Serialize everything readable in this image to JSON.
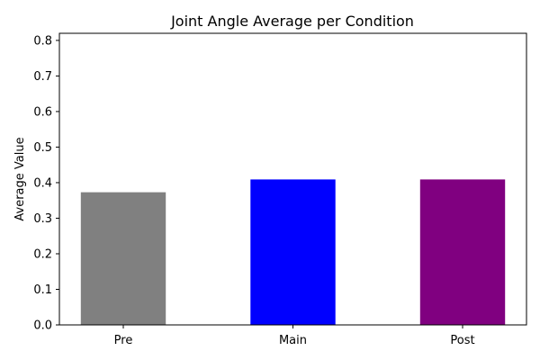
{
  "chart_data": {
    "type": "bar",
    "title": "Joint Angle Average per Condition",
    "xlabel": "",
    "ylabel": "Average Value",
    "categories": [
      "Pre",
      "Main",
      "Post"
    ],
    "values": [
      0.373,
      0.409,
      0.409
    ],
    "colors": [
      "#808080",
      "#0000ff",
      "#800080"
    ],
    "ylim": [
      0,
      0.82
    ],
    "yticks": [
      0.0,
      0.1,
      0.2,
      0.3,
      0.4,
      0.5,
      0.6,
      0.7,
      0.8
    ],
    "ytick_labels": [
      "0.0",
      "0.1",
      "0.2",
      "0.3",
      "0.4",
      "0.5",
      "0.6",
      "0.7",
      "0.8"
    ],
    "grid": false,
    "legend": "none"
  }
}
